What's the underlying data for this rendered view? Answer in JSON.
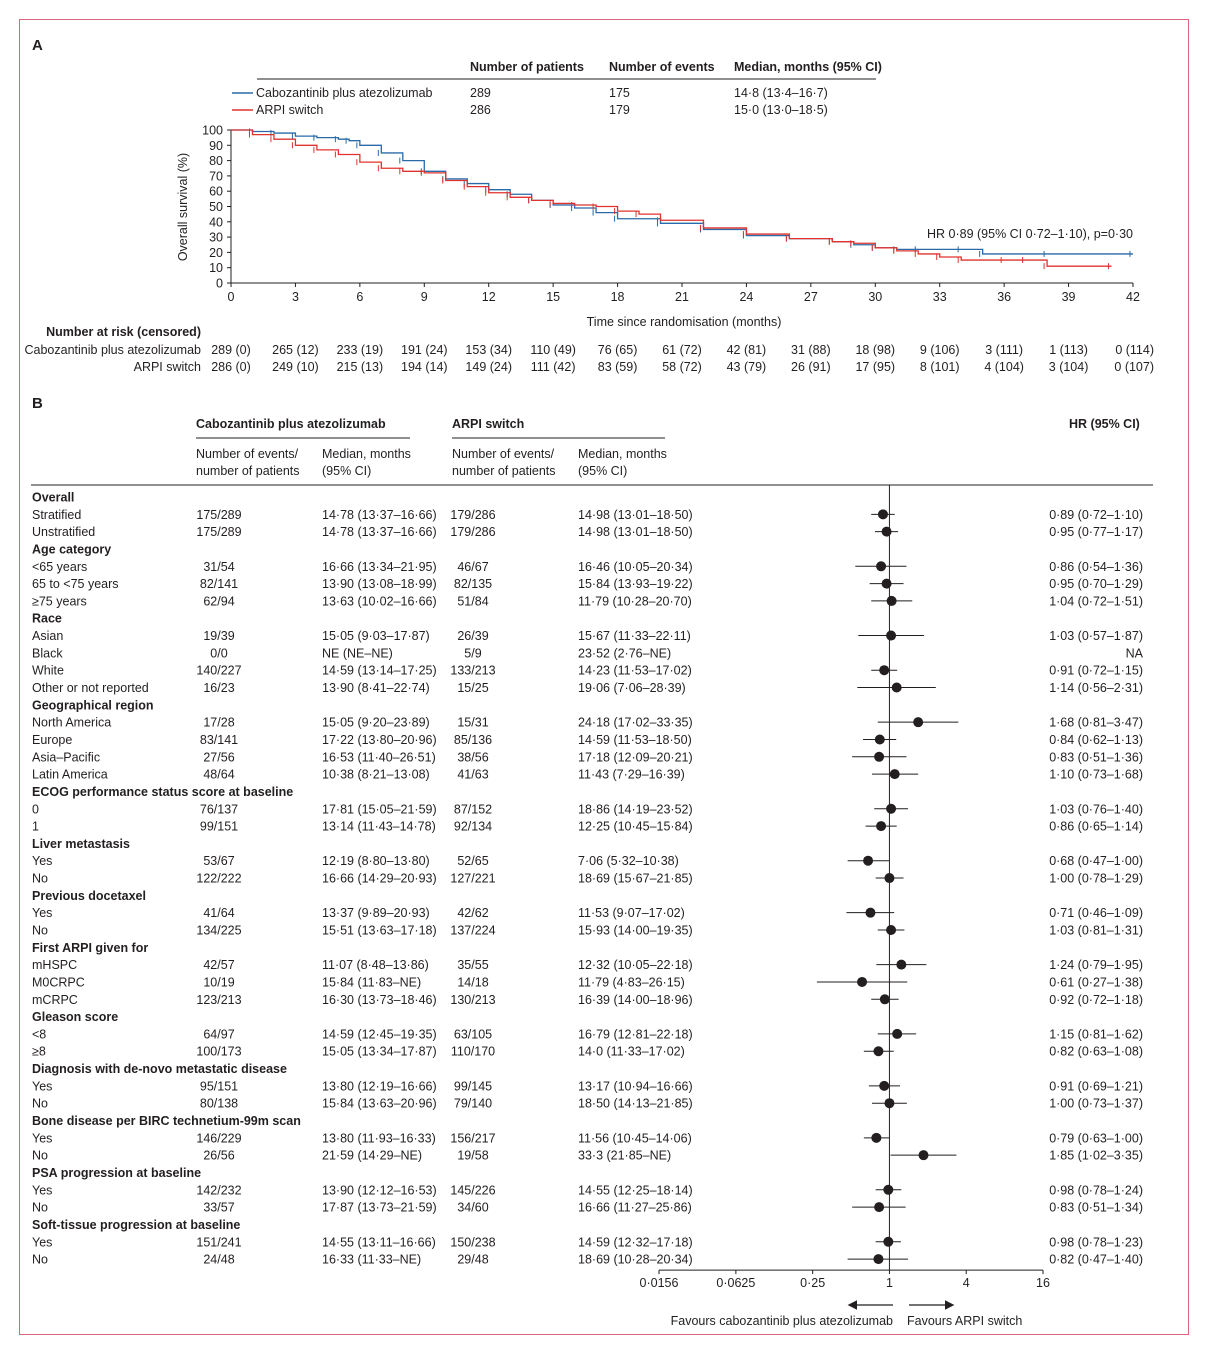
{
  "colors": {
    "frame": "#d9667a",
    "cabo": "#2a6aa8",
    "arpi": "#e0332f",
    "text": "#231f20"
  },
  "panelA": {
    "label": "A",
    "legend": {
      "headers": [
        "Number of patients",
        "Number of events",
        "Median, months (95% CI)"
      ],
      "rows": [
        {
          "name": "Cabozantinib plus atezolizumab",
          "patients": "289",
          "events": "175",
          "median": "14·8 (13·4–16·7)"
        },
        {
          "name": "ARPI switch",
          "patients": "286",
          "events": "179",
          "median": "15·0 (13·0–18·5)"
        }
      ]
    },
    "hr_text": "HR 0·89 (95% CI 0·72–1·10), p=0·30",
    "risk_title": "Number at risk (censored)",
    "risk_rows": [
      {
        "name": "Cabozantinib plus atezolizumab",
        "values": [
          "289 (0)",
          "265 (12)",
          "233 (19)",
          "191 (24)",
          "153 (34)",
          "110 (49)",
          "76 (65)",
          "61 (72)",
          "42 (81)",
          "31 (88)",
          "18 (98)",
          "9 (106)",
          "3 (111)",
          "1 (113)",
          "0 (114)"
        ]
      },
      {
        "name": "ARPI switch",
        "values": [
          "286 (0)",
          "249 (10)",
          "215 (13)",
          "194 (14)",
          "149 (24)",
          "111 (42)",
          "83 (59)",
          "58 (72)",
          "43 (79)",
          "26 (91)",
          "17 (95)",
          "8 (101)",
          "4 (104)",
          "3 (104)",
          "0 (107)"
        ]
      }
    ]
  },
  "panelB": {
    "label": "B",
    "group_headers": [
      "Cabozantinib plus atezolizumab",
      "ARPI switch"
    ],
    "sub_headers": [
      "Number of events/",
      "number of patients",
      "Median, months",
      "(95% CI)"
    ],
    "hr_header": "HR (95% CI)",
    "favours_left": "Favours cabozantinib plus atezolizumab",
    "favours_right": "Favours ARPI switch"
  },
  "chart_data": [
    {
      "type": "line",
      "title": "",
      "xlabel": "Time since randomisation (months)",
      "ylabel": "Overall survival (%)",
      "xlim": [
        0,
        42
      ],
      "ylim": [
        0,
        100
      ],
      "xticks": [
        0,
        3,
        6,
        9,
        12,
        15,
        18,
        21,
        24,
        27,
        30,
        33,
        36,
        39,
        42
      ],
      "yticks": [
        0,
        10,
        20,
        30,
        40,
        50,
        60,
        70,
        80,
        90,
        100
      ],
      "series": [
        {
          "name": "Cabozantinib plus atezolizumab",
          "color": "#2a6aa8",
          "x": [
            0,
            1,
            2,
            3,
            4,
            5,
            5.5,
            6,
            7,
            8,
            9,
            10,
            11,
            12,
            13,
            14,
            15,
            16,
            17,
            18,
            20,
            22,
            24,
            26,
            28,
            29,
            30,
            31,
            32,
            34,
            35,
            38,
            42
          ],
          "y": [
            100,
            99,
            98,
            96,
            95,
            94,
            93,
            90,
            85,
            80,
            73,
            68,
            65,
            61,
            58,
            54,
            51,
            49,
            46,
            42,
            39,
            35,
            31,
            29,
            27,
            25,
            23,
            22,
            22,
            22,
            19,
            19,
            19
          ]
        },
        {
          "name": "ARPI switch",
          "color": "#e0332f",
          "x": [
            0,
            1,
            2,
            3,
            4,
            5,
            6,
            7,
            8,
            9,
            10,
            11,
            12,
            13,
            14,
            15,
            16,
            17,
            18,
            19,
            20,
            22,
            24,
            26,
            28,
            29,
            30,
            31,
            32,
            33,
            34,
            36,
            37,
            38,
            41
          ],
          "y": [
            100,
            97,
            94,
            90,
            87,
            84,
            79,
            75,
            73,
            72,
            67,
            63,
            59,
            56,
            54,
            52,
            51,
            50,
            47,
            45,
            41,
            36,
            32,
            29,
            27,
            26,
            23,
            21,
            19,
            17,
            15,
            15,
            15,
            11,
            11
          ]
        }
      ]
    },
    {
      "type": "forest",
      "title": "",
      "xlabel": "",
      "xscale": "log2",
      "xlim": [
        0.0156,
        16
      ],
      "xticks": [
        0.0156,
        0.0625,
        0.25,
        1,
        4,
        16
      ],
      "xtick_labels": [
        "0·0156",
        "0·0625",
        "0·25",
        "1",
        "4",
        "16"
      ],
      "rows": [
        {
          "kind": "head",
          "label": "Overall"
        },
        {
          "label": "Stratified",
          "ce": "175/289",
          "cm": "14·78 (13·37–16·66)",
          "ae": "179/286",
          "am": "14·98 (13·01–18·50)",
          "hr": 0.89,
          "lo": 0.72,
          "hi": 1.1,
          "hr_text": "0·89 (0·72–1·10)"
        },
        {
          "label": "Unstratified",
          "ce": "175/289",
          "cm": "14·78 (13·37–16·66)",
          "ae": "179/286",
          "am": "14·98 (13·01–18·50)",
          "hr": 0.95,
          "lo": 0.77,
          "hi": 1.17,
          "hr_text": "0·95 (0·77–1·17)"
        },
        {
          "kind": "head",
          "label": "Age category"
        },
        {
          "label": "<65 years",
          "ce": "31/54",
          "cm": "16·66 (13·34–21·95)",
          "ae": "46/67",
          "am": "16·46 (10·05–20·34)",
          "hr": 0.86,
          "lo": 0.54,
          "hi": 1.36,
          "hr_text": "0·86 (0·54–1·36)"
        },
        {
          "label": "65 to <75 years",
          "ce": "82/141",
          "cm": "13·90 (13·08–18·99)",
          "ae": "82/135",
          "am": "15·84 (13·93–19·22)",
          "hr": 0.95,
          "lo": 0.7,
          "hi": 1.29,
          "hr_text": "0·95 (0·70–1·29)"
        },
        {
          "label": "≥75 years",
          "ce": "62/94",
          "cm": "13·63 (10·02–16·66)",
          "ae": "51/84",
          "am": "11·79 (10·28–20·70)",
          "hr": 1.04,
          "lo": 0.72,
          "hi": 1.51,
          "hr_text": "1·04 (0·72–1·51)"
        },
        {
          "kind": "head",
          "label": "Race"
        },
        {
          "label": "Asian",
          "ce": "19/39",
          "cm": "15·05 (9·03–17·87)",
          "ae": "26/39",
          "am": "15·67 (11·33–22·11)",
          "hr": 1.03,
          "lo": 0.57,
          "hi": 1.87,
          "hr_text": "1·03 (0·57–1·87)"
        },
        {
          "label": "Black",
          "ce": "0/0",
          "cm": "NE (NE–NE)",
          "ae": "5/9",
          "am": "23·52 (2·76–NE)",
          "hr": null,
          "lo": null,
          "hi": null,
          "hr_text": "NA"
        },
        {
          "label": "White",
          "ce": "140/227",
          "cm": "14·59 (13·14–17·25)",
          "ae": "133/213",
          "am": "14·23 (11·53–17·02)",
          "hr": 0.91,
          "lo": 0.72,
          "hi": 1.15,
          "hr_text": "0·91 (0·72–1·15)"
        },
        {
          "label": "Other or not reported",
          "ce": "16/23",
          "cm": "13·90 (8·41–22·74)",
          "ae": "15/25",
          "am": "19·06 (7·06–28·39)",
          "hr": 1.14,
          "lo": 0.56,
          "hi": 2.31,
          "hr_text": "1·14 (0·56–2·31)"
        },
        {
          "kind": "head",
          "label": "Geographical region"
        },
        {
          "label": "North America",
          "ce": "17/28",
          "cm": "15·05 (9·20–23·89)",
          "ae": "15/31",
          "am": "24·18 (17·02–33·35)",
          "hr": 1.68,
          "lo": 0.81,
          "hi": 3.47,
          "hr_text": "1·68 (0·81–3·47)"
        },
        {
          "label": "Europe",
          "ce": "83/141",
          "cm": "17·22 (13·80–20·96)",
          "ae": "85/136",
          "am": "14·59 (11·53–18·50)",
          "hr": 0.84,
          "lo": 0.62,
          "hi": 1.13,
          "hr_text": "0·84 (0·62–1·13)"
        },
        {
          "label": "Asia–Pacific",
          "ce": "27/56",
          "cm": "16·53 (11·40–26·51)",
          "ae": "38/56",
          "am": "17·18 (12·09–20·21)",
          "hr": 0.83,
          "lo": 0.51,
          "hi": 1.36,
          "hr_text": "0·83 (0·51–1·36)"
        },
        {
          "label": "Latin America",
          "ce": "48/64",
          "cm": "10·38 (8·21–13·08)",
          "ae": "41/63",
          "am": "11·43 (7·29–16·39)",
          "hr": 1.1,
          "lo": 0.73,
          "hi": 1.68,
          "hr_text": "1·10 (0·73–1·68)"
        },
        {
          "kind": "head",
          "label": "ECOG performance status score at baseline"
        },
        {
          "label": "0",
          "ce": "76/137",
          "cm": "17·81 (15·05–21·59)",
          "ae": "87/152",
          "am": "18·86 (14·19–23·52)",
          "hr": 1.03,
          "lo": 0.76,
          "hi": 1.4,
          "hr_text": "1·03 (0·76–1·40)"
        },
        {
          "label": "1",
          "ce": "99/151",
          "cm": "13·14 (11·43–14·78)",
          "ae": "92/134",
          "am": "12·25 (10·45–15·84)",
          "hr": 0.86,
          "lo": 0.65,
          "hi": 1.14,
          "hr_text": "0·86 (0·65–1·14)"
        },
        {
          "kind": "head",
          "label": "Liver metastasis"
        },
        {
          "label": "Yes",
          "ce": "53/67",
          "cm": "12·19 (8·80–13·80)",
          "ae": "52/65",
          "am": "7·06 (5·32–10·38)",
          "hr": 0.68,
          "lo": 0.47,
          "hi": 1.0,
          "hr_text": "0·68 (0·47–1·00)"
        },
        {
          "label": "No",
          "ce": "122/222",
          "cm": "16·66 (14·29–20·93)",
          "ae": "127/221",
          "am": "18·69 (15·67–21·85)",
          "hr": 1.0,
          "lo": 0.78,
          "hi": 1.29,
          "hr_text": "1·00 (0·78–1·29)"
        },
        {
          "kind": "head",
          "label": "Previous docetaxel"
        },
        {
          "label": "Yes",
          "ce": "41/64",
          "cm": "13·37 (9·89–20·93)",
          "ae": "42/62",
          "am": "11·53 (9·07–17·02)",
          "hr": 0.71,
          "lo": 0.46,
          "hi": 1.09,
          "hr_text": "0·71 (0·46–1·09)"
        },
        {
          "label": "No",
          "ce": "134/225",
          "cm": "15·51 (13·63–17·18)",
          "ae": "137/224",
          "am": "15·93 (14·00–19·35)",
          "hr": 1.03,
          "lo": 0.81,
          "hi": 1.31,
          "hr_text": "1·03 (0·81–1·31)"
        },
        {
          "kind": "head",
          "label": "First ARPI given for"
        },
        {
          "label": "mHSPC",
          "ce": "42/57",
          "cm": "11·07 (8·48–13·86)",
          "ae": "35/55",
          "am": "12·32 (10·05–22·18)",
          "hr": 1.24,
          "lo": 0.79,
          "hi": 1.95,
          "hr_text": "1·24 (0·79–1·95)"
        },
        {
          "label": "M0CRPC",
          "ce": "10/19",
          "cm": "15·84 (11·83–NE)",
          "ae": "14/18",
          "am": "11·79 (4·83–26·15)",
          "hr": 0.61,
          "lo": 0.27,
          "hi": 1.38,
          "hr_text": "0·61 (0·27–1·38)"
        },
        {
          "label": "mCRPC",
          "ce": "123/213",
          "cm": "16·30 (13·73–18·46)",
          "ae": "130/213",
          "am": "16·39 (14·00–18·96)",
          "hr": 0.92,
          "lo": 0.72,
          "hi": 1.18,
          "hr_text": "0·92 (0·72–1·18)"
        },
        {
          "kind": "head",
          "label": "Gleason score"
        },
        {
          "label": "<8",
          "ce": "64/97",
          "cm": "14·59 (12·45–19·35)",
          "ae": "63/105",
          "am": "16·79 (12·81–22·18)",
          "hr": 1.15,
          "lo": 0.81,
          "hi": 1.62,
          "hr_text": "1·15 (0·81–1·62)"
        },
        {
          "label": "≥8",
          "ce": "100/173",
          "cm": "15·05 (13·34–17·87)",
          "ae": "110/170",
          "am": "14·0 (11·33–17·02)",
          "hr": 0.82,
          "lo": 0.63,
          "hi": 1.08,
          "hr_text": "0·82 (0·63–1·08)"
        },
        {
          "kind": "head",
          "label": "Diagnosis with de-novo metastatic disease"
        },
        {
          "label": "Yes",
          "ce": "95/151",
          "cm": "13·80 (12·19–16·66)",
          "ae": "99/145",
          "am": "13·17 (10·94–16·66)",
          "hr": 0.91,
          "lo": 0.69,
          "hi": 1.21,
          "hr_text": "0·91 (0·69–1·21)"
        },
        {
          "label": "No",
          "ce": "80/138",
          "cm": "15·84 (13·63–20·96)",
          "ae": "79/140",
          "am": "18·50 (14·13–21·85)",
          "hr": 1.0,
          "lo": 0.73,
          "hi": 1.37,
          "hr_text": "1·00 (0·73–1·37)"
        },
        {
          "kind": "head",
          "label": "Bone disease per BIRC technetium-99m scan"
        },
        {
          "label": "Yes",
          "ce": "146/229",
          "cm": "13·80 (11·93–16·33)",
          "ae": "156/217",
          "am": "11·56 (10·45–14·06)",
          "hr": 0.79,
          "lo": 0.63,
          "hi": 1.0,
          "hr_text": "0·79 (0·63–1·00)"
        },
        {
          "label": "No",
          "ce": "26/56",
          "cm": "21·59 (14·29–NE)",
          "ae": "19/58",
          "am": "33·3 (21·85–NE)",
          "hr": 1.85,
          "lo": 1.02,
          "hi": 3.35,
          "hr_text": "1·85 (1·02–3·35)"
        },
        {
          "kind": "head",
          "label": "PSA progression at baseline"
        },
        {
          "label": "Yes",
          "ce": "142/232",
          "cm": "13·90 (12·12–16·53)",
          "ae": "145/226",
          "am": "14·55 (12·25–18·14)",
          "hr": 0.98,
          "lo": 0.78,
          "hi": 1.24,
          "hr_text": "0·98 (0·78–1·24)"
        },
        {
          "label": "No",
          "ce": "33/57",
          "cm": "17·87 (13·73–21·59)",
          "ae": "34/60",
          "am": "16·66 (11·27–25·86)",
          "hr": 0.83,
          "lo": 0.51,
          "hi": 1.34,
          "hr_text": "0·83 (0·51–1·34)"
        },
        {
          "kind": "head",
          "label": "Soft-tissue progression at baseline"
        },
        {
          "label": "Yes",
          "ce": "151/241",
          "cm": "14·55 (13·11–16·66)",
          "ae": "150/238",
          "am": "14·59 (12·32–17·18)",
          "hr": 0.98,
          "lo": 0.78,
          "hi": 1.23,
          "hr_text": "0·98 (0·78–1·23)"
        },
        {
          "label": "No",
          "ce": "24/48",
          "cm": "16·33 (11·33–NE)",
          "ae": "29/48",
          "am": "18·69 (10·28–20·34)",
          "hr": 0.82,
          "lo": 0.47,
          "hi": 1.4,
          "hr_text": "0·82 (0·47–1·40)"
        }
      ]
    }
  ]
}
